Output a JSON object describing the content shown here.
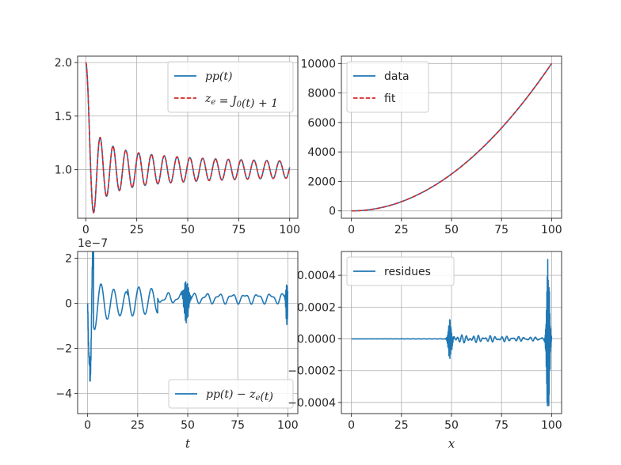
{
  "colors": {
    "series_blue": "#1f77b4",
    "series_red": "#d62728",
    "grid": "#b0b0b0",
    "axes": "#262626"
  },
  "chart_data": [
    {
      "type": "line",
      "panel": "top-left",
      "grid": true,
      "legend_position": "top-right",
      "xlim": [
        -4,
        104
      ],
      "ylim": [
        0.545,
        2.06
      ],
      "xticks": [
        0,
        25,
        50,
        75,
        100
      ],
      "yticks": [
        1.0,
        1.5,
        2.0
      ],
      "xtick_labels": [
        "0",
        "25",
        "50",
        "75",
        "100"
      ],
      "ytick_labels": [
        "1.0",
        "1.5",
        "2.0"
      ],
      "legend": [
        "pp(t)",
        "z_e = J_0(t) + 1"
      ],
      "series": [
        {
          "name": "pp(t)",
          "style": "solid",
          "color": "#1f77b4",
          "function": "1 + J0(t)",
          "x_range": [
            0,
            100
          ],
          "sample_points": [
            [
              0,
              2.0
            ],
            [
              2.4,
              1.0
            ],
            [
              3.83,
              0.597
            ],
            [
              7.02,
              1.3
            ],
            [
              10.17,
              0.751
            ],
            [
              13.32,
              1.218
            ],
            [
              50,
              1.056
            ],
            [
              100,
              0.98
            ]
          ]
        },
        {
          "name": "z_e = J_0(t) + 1",
          "style": "dashed",
          "color": "#d62728",
          "function": "1 + J0(t)",
          "x_range": [
            0,
            100
          ],
          "sample_points": [
            [
              0,
              2.0
            ],
            [
              3.83,
              0.597
            ],
            [
              7.02,
              1.3
            ],
            [
              100,
              0.98
            ]
          ]
        }
      ]
    },
    {
      "type": "line",
      "panel": "top-right",
      "grid": true,
      "legend_position": "top-left",
      "xlim": [
        -5,
        105
      ],
      "ylim": [
        -500,
        10500
      ],
      "xticks": [
        0,
        25,
        50,
        75,
        100
      ],
      "yticks": [
        0,
        2000,
        4000,
        6000,
        8000,
        10000
      ],
      "xtick_labels": [
        "0",
        "25",
        "50",
        "75",
        "100"
      ],
      "ytick_labels": [
        "0",
        "2000",
        "4000",
        "6000",
        "8000",
        "10000"
      ],
      "legend": [
        "data",
        "fit"
      ],
      "series": [
        {
          "name": "data",
          "style": "solid",
          "color": "#1f77b4",
          "function": "x^2",
          "x_range": [
            0,
            100
          ],
          "sample_points": [
            [
              0,
              0
            ],
            [
              25,
              625
            ],
            [
              50,
              2500
            ],
            [
              75,
              5625
            ],
            [
              100,
              10000
            ]
          ]
        },
        {
          "name": "fit",
          "style": "dashed",
          "color": "#d62728",
          "function": "x^2",
          "x_range": [
            0,
            100
          ],
          "sample_points": [
            [
              0,
              0
            ],
            [
              25,
              625
            ],
            [
              50,
              2500
            ],
            [
              75,
              5625
            ],
            [
              100,
              10000
            ]
          ]
        }
      ]
    },
    {
      "type": "line",
      "panel": "bottom-left",
      "grid": true,
      "legend_position": "bottom-right",
      "xlabel": "t",
      "offset_label": "1e−7",
      "xlim": [
        -5,
        105
      ],
      "ylim": [
        -4.9,
        2.3
      ],
      "xticks": [
        0,
        25,
        50,
        75,
        100
      ],
      "yticks": [
        -4,
        -2,
        0,
        2
      ],
      "xtick_labels": [
        "0",
        "25",
        "50",
        "75",
        "100"
      ],
      "ytick_labels": [
        "−4",
        "−2",
        "0",
        "2"
      ],
      "legend": [
        "pp(t) − z_e(t)"
      ],
      "series": [
        {
          "name": "pp(t) − z_e(t)",
          "style": "solid",
          "color": "#1f77b4",
          "x_range": [
            0,
            100
          ],
          "sample_points": [
            [
              0,
              0.0
            ],
            [
              1.0,
              -3.2
            ],
            [
              1.5,
              -4.2
            ],
            [
              2.8,
              -2.0
            ],
            [
              4.2,
              2.0
            ],
            [
              7.5,
              -1.6
            ],
            [
              10.5,
              1.3
            ],
            [
              14,
              -1.2
            ],
            [
              20,
              0.9
            ],
            [
              30,
              0.6
            ],
            [
              40,
              0.4
            ],
            [
              49,
              0.9
            ],
            [
              51,
              -0.9
            ],
            [
              60,
              0.3
            ],
            [
              80,
              0.25
            ],
            [
              98,
              0.25
            ],
            [
              100,
              -0.5
            ]
          ]
        }
      ]
    },
    {
      "type": "line",
      "panel": "bottom-right",
      "grid": true,
      "legend_position": "top-left",
      "xlabel": "x",
      "xlim": [
        -5,
        105
      ],
      "ylim": [
        -0.00047,
        0.00055
      ],
      "xticks": [
        0,
        25,
        50,
        75,
        100
      ],
      "yticks": [
        -0.0004,
        -0.0002,
        0.0,
        0.0002,
        0.0004
      ],
      "xtick_labels": [
        "0",
        "25",
        "50",
        "75",
        "100"
      ],
      "ytick_labels": [
        "−0.0004",
        "−0.0002",
        "0.0000",
        "0.0002",
        "0.0004"
      ],
      "legend": [
        "residues"
      ],
      "series": [
        {
          "name": "residues",
          "style": "solid",
          "color": "#1f77b4",
          "x_range": [
            0,
            100
          ],
          "sample_points": [
            [
              0,
              0.0
            ],
            [
              30,
              2e-06
            ],
            [
              48,
              -6e-05
            ],
            [
              49,
              0.00011
            ],
            [
              50,
              -0.0001
            ],
            [
              55,
              2e-05
            ],
            [
              75,
              -1.5e-05
            ],
            [
              97,
              0.0002
            ],
            [
              98,
              0.0005
            ],
            [
              99,
              -0.00042
            ],
            [
              100,
              0.0
            ]
          ]
        }
      ]
    }
  ]
}
